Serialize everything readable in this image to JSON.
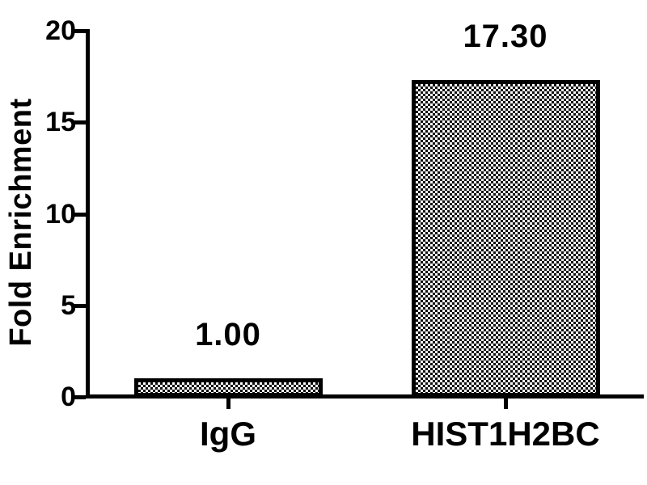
{
  "chart_data": {
    "type": "bar",
    "title": "",
    "ylabel": "Fold Enrichment",
    "xlabel": "",
    "categories": [
      "IgG",
      "HIST1H2BC"
    ],
    "values": [
      1.0,
      17.3
    ],
    "bar_value_labels": [
      "1.00",
      "17.30"
    ],
    "ylim": [
      0,
      20
    ],
    "yticks": [
      "0",
      "5",
      "10",
      "15",
      "20"
    ],
    "grid": false,
    "legend_position": "none",
    "bar_fill_pattern": "checkerboard",
    "bar_border_color": "#000000",
    "axis_color": "#000000",
    "text_color": "#000000",
    "background_color": "#ffffff"
  }
}
